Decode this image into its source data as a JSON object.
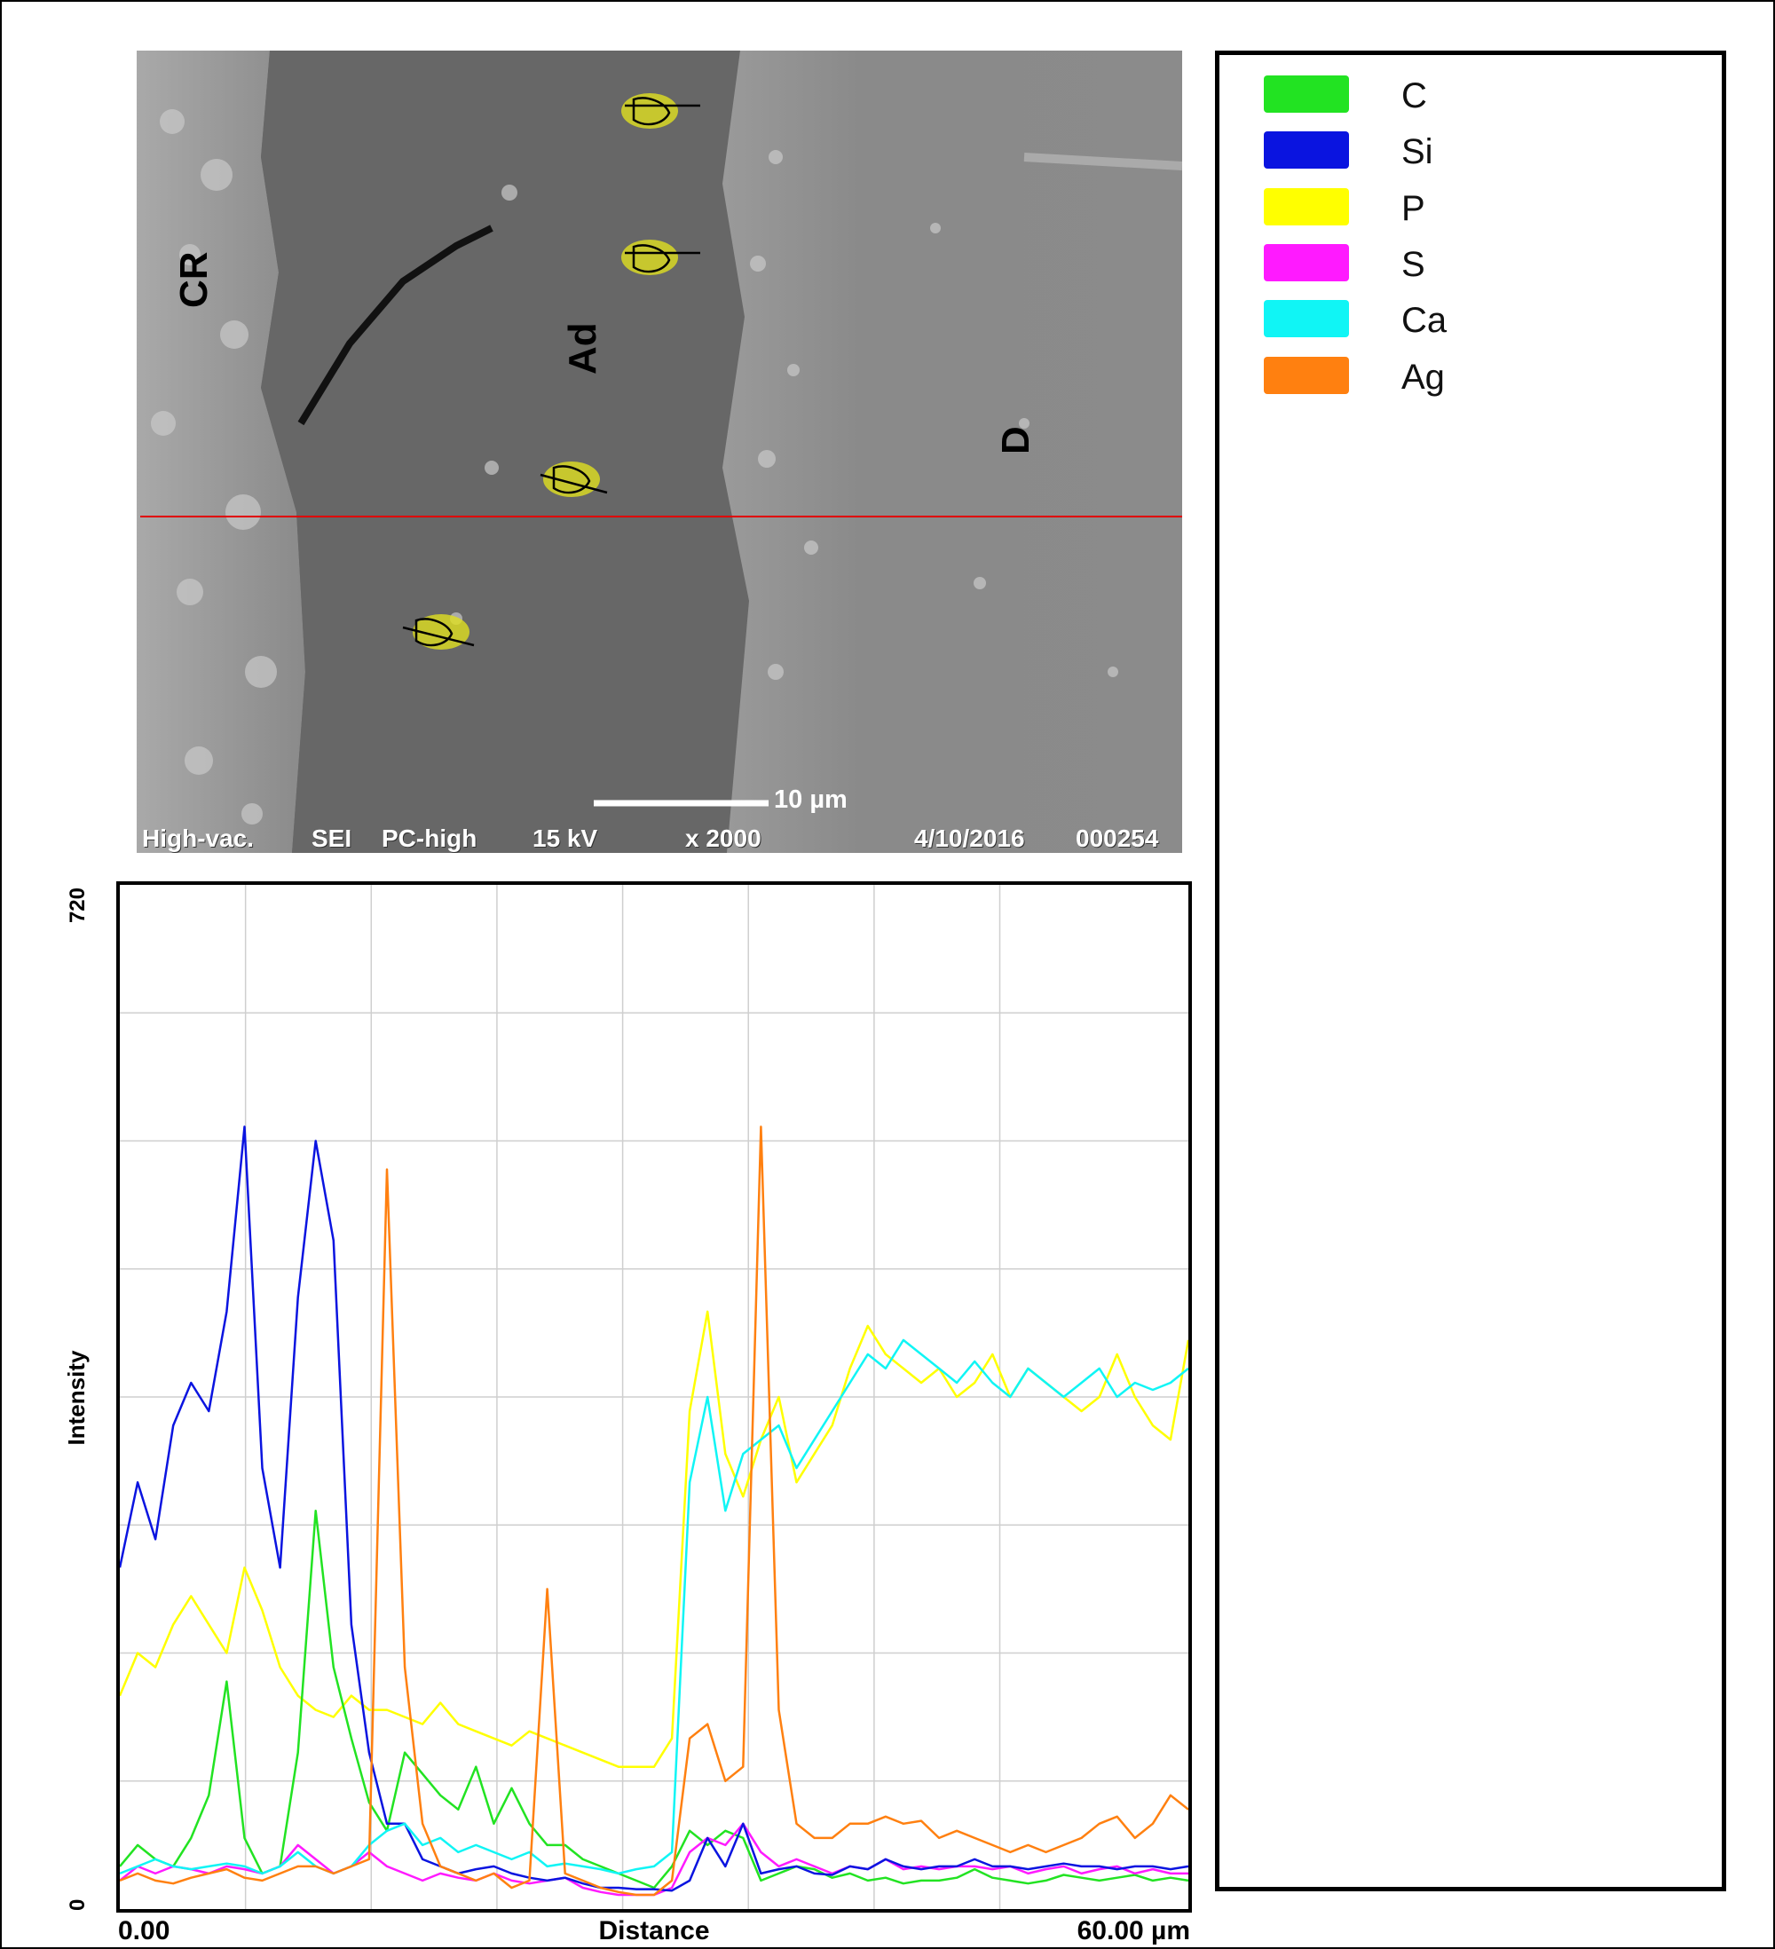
{
  "sem_image": {
    "region_labels": [
      "CR",
      "Ad",
      "D"
    ],
    "scale_bar": "10 µm",
    "footer": {
      "vacuum": "High-vac.",
      "detector": "SEI",
      "probe": "PC-high",
      "voltage": "15 kV",
      "magnification": "x 2000",
      "date": "4/10/2016",
      "image_number": "000254"
    },
    "scan_line_color": "#e00000"
  },
  "legend": {
    "items": [
      {
        "label": "C",
        "color": "#22e322"
      },
      {
        "label": "Si",
        "color": "#0a14e0"
      },
      {
        "label": "P",
        "color": "#ffff00"
      },
      {
        "label": "S",
        "color": "#ff1aff"
      },
      {
        "label": "Ca",
        "color": "#10f5f5"
      },
      {
        "label": "Ag",
        "color": "#ff8010"
      }
    ]
  },
  "chart_data": {
    "type": "line",
    "title": "",
    "xlabel": "Distance",
    "ylabel": "Intensity",
    "x_tick_labels": [
      "0.00",
      "60.00 µm"
    ],
    "y_tick_labels": [
      "0",
      "720"
    ],
    "xlim": [
      0,
      60
    ],
    "ylim": [
      0,
      720
    ],
    "grid": true,
    "x": [
      0,
      1,
      2,
      3,
      4,
      5,
      6,
      7,
      8,
      9,
      10,
      11,
      12,
      13,
      14,
      15,
      16,
      17,
      18,
      19,
      20,
      21,
      22,
      23,
      24,
      25,
      26,
      27,
      28,
      29,
      30,
      31,
      32,
      33,
      34,
      35,
      36,
      37,
      38,
      39,
      40,
      41,
      42,
      43,
      44,
      45,
      46,
      47,
      48,
      49,
      50,
      51,
      52,
      53,
      54,
      55,
      56,
      57,
      58,
      59,
      60
    ],
    "series": [
      {
        "name": "C",
        "color": "#22e322",
        "values": [
          30,
          45,
          35,
          30,
          50,
          80,
          160,
          50,
          25,
          30,
          110,
          280,
          170,
          120,
          75,
          55,
          110,
          95,
          80,
          70,
          100,
          60,
          85,
          60,
          45,
          45,
          35,
          30,
          25,
          20,
          15,
          30,
          55,
          45,
          55,
          50,
          20,
          25,
          30,
          28,
          22,
          25,
          20,
          22,
          18,
          20,
          20,
          22,
          28,
          22,
          20,
          18,
          20,
          24,
          22,
          20,
          22,
          24,
          20,
          22,
          20
        ]
      },
      {
        "name": "Si",
        "color": "#0a14e0",
        "values": [
          240,
          300,
          260,
          340,
          370,
          350,
          420,
          550,
          310,
          240,
          430,
          540,
          470,
          200,
          110,
          60,
          60,
          35,
          30,
          25,
          28,
          30,
          25,
          22,
          20,
          22,
          18,
          15,
          15,
          14,
          14,
          13,
          20,
          50,
          30,
          60,
          25,
          28,
          30,
          25,
          24,
          30,
          28,
          35,
          30,
          28,
          30,
          30,
          35,
          30,
          30,
          28,
          30,
          32,
          30,
          30,
          28,
          30,
          30,
          28,
          30
        ]
      },
      {
        "name": "P",
        "color": "#ffff00",
        "values": [
          150,
          180,
          170,
          200,
          220,
          200,
          180,
          240,
          210,
          170,
          150,
          140,
          135,
          150,
          140,
          140,
          135,
          130,
          145,
          130,
          125,
          120,
          115,
          125,
          120,
          115,
          110,
          105,
          100,
          100,
          100,
          120,
          350,
          420,
          320,
          290,
          330,
          360,
          300,
          320,
          340,
          380,
          410,
          390,
          380,
          370,
          380,
          360,
          370,
          390,
          360,
          380,
          370,
          360,
          350,
          360,
          390,
          360,
          340,
          330,
          400
        ]
      },
      {
        "name": "S",
        "color": "#ff1aff",
        "values": [
          20,
          30,
          25,
          30,
          28,
          25,
          30,
          28,
          25,
          30,
          45,
          35,
          25,
          30,
          40,
          30,
          25,
          20,
          25,
          22,
          20,
          25,
          20,
          18,
          20,
          22,
          15,
          12,
          10,
          10,
          10,
          15,
          40,
          50,
          45,
          60,
          40,
          30,
          35,
          30,
          25,
          30,
          28,
          35,
          28,
          30,
          28,
          30,
          30,
          28,
          30,
          25,
          28,
          30,
          25,
          28,
          30,
          25,
          28,
          25,
          25
        ]
      },
      {
        "name": "Ca",
        "color": "#10f5f5",
        "values": [
          25,
          30,
          35,
          30,
          28,
          30,
          32,
          30,
          25,
          30,
          40,
          30,
          25,
          30,
          45,
          55,
          60,
          45,
          50,
          40,
          45,
          40,
          35,
          40,
          30,
          32,
          30,
          28,
          25,
          28,
          30,
          40,
          300,
          360,
          280,
          320,
          330,
          340,
          310,
          330,
          350,
          370,
          390,
          380,
          400,
          390,
          380,
          370,
          385,
          370,
          360,
          380,
          370,
          360,
          370,
          380,
          360,
          370,
          365,
          370,
          380
        ]
      },
      {
        "name": "Ag",
        "color": "#ff8010",
        "values": [
          20,
          25,
          20,
          18,
          22,
          25,
          28,
          22,
          20,
          25,
          30,
          30,
          25,
          30,
          35,
          520,
          170,
          60,
          30,
          25,
          20,
          25,
          15,
          20,
          225,
          25,
          20,
          15,
          12,
          10,
          10,
          20,
          120,
          130,
          90,
          100,
          550,
          140,
          60,
          50,
          50,
          60,
          60,
          65,
          60,
          62,
          50,
          55,
          50,
          45,
          40,
          45,
          40,
          45,
          50,
          60,
          65,
          50,
          60,
          80,
          70
        ]
      }
    ]
  }
}
